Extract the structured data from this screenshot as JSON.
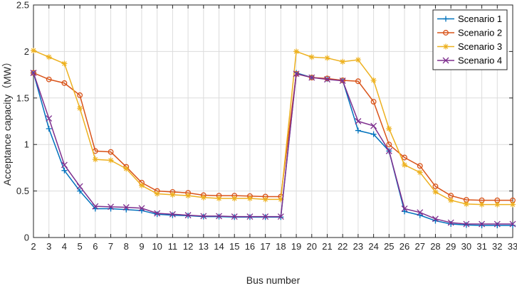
{
  "chart_data": {
    "type": "line",
    "xlabel": "Bus number",
    "ylabel": "Acceptance capacity（MW）",
    "x": [
      2,
      3,
      4,
      5,
      6,
      7,
      8,
      9,
      10,
      11,
      12,
      13,
      14,
      15,
      16,
      17,
      18,
      19,
      20,
      21,
      22,
      23,
      24,
      25,
      26,
      27,
      28,
      29,
      30,
      31,
      32,
      33
    ],
    "xlim": [
      2,
      33
    ],
    "ylim": [
      0,
      2.5
    ],
    "yticks": [
      0,
      0.5,
      1,
      1.5,
      2,
      2.5
    ],
    "ytick_labels": [
      "0",
      "0.5",
      "1",
      "1.5",
      "2",
      "2.5"
    ],
    "grid": true,
    "legend_position": "top-right",
    "series": [
      {
        "name": "Scenario 1",
        "color": "#0072BD",
        "marker": "plus",
        "values": [
          1.77,
          1.17,
          0.72,
          0.5,
          0.31,
          0.31,
          0.3,
          0.29,
          0.25,
          0.24,
          0.235,
          0.225,
          0.225,
          0.22,
          0.22,
          0.22,
          0.22,
          1.77,
          1.72,
          1.705,
          1.69,
          1.15,
          1.11,
          0.93,
          0.28,
          0.24,
          0.18,
          0.145,
          0.135,
          0.13,
          0.13,
          0.13
        ]
      },
      {
        "name": "Scenario 2",
        "color": "#D95319",
        "marker": "circle",
        "values": [
          1.77,
          1.7,
          1.66,
          1.53,
          0.93,
          0.92,
          0.76,
          0.59,
          0.5,
          0.49,
          0.48,
          0.455,
          0.45,
          0.45,
          0.445,
          0.44,
          0.44,
          1.76,
          1.72,
          1.71,
          1.69,
          1.68,
          1.46,
          1.0,
          0.86,
          0.77,
          0.55,
          0.45,
          0.405,
          0.4,
          0.4,
          0.4
        ]
      },
      {
        "name": "Scenario 3",
        "color": "#EDB120",
        "marker": "star",
        "values": [
          2.01,
          1.94,
          1.87,
          1.39,
          0.84,
          0.83,
          0.74,
          0.56,
          0.47,
          0.46,
          0.45,
          0.43,
          0.42,
          0.42,
          0.42,
          0.41,
          0.41,
          2.0,
          1.94,
          1.93,
          1.89,
          1.91,
          1.69,
          1.17,
          0.78,
          0.7,
          0.49,
          0.4,
          0.36,
          0.355,
          0.355,
          0.355
        ]
      },
      {
        "name": "Scenario 4",
        "color": "#7E2F8E",
        "marker": "x",
        "values": [
          1.77,
          1.28,
          0.78,
          0.55,
          0.335,
          0.33,
          0.325,
          0.315,
          0.26,
          0.25,
          0.24,
          0.23,
          0.23,
          0.225,
          0.225,
          0.225,
          0.225,
          1.76,
          1.72,
          1.7,
          1.685,
          1.25,
          1.2,
          0.93,
          0.31,
          0.27,
          0.2,
          0.16,
          0.145,
          0.145,
          0.145,
          0.145
        ]
      }
    ]
  }
}
